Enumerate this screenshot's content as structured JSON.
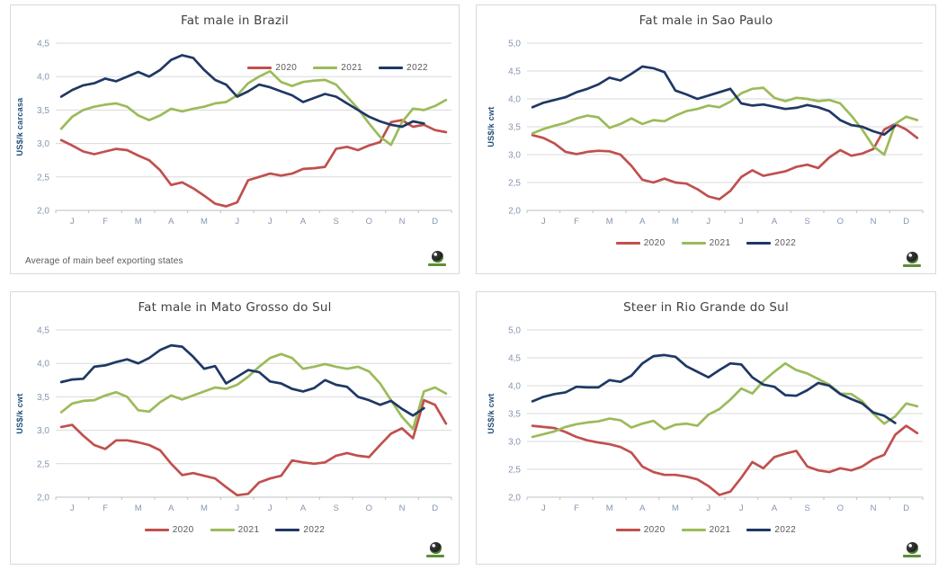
{
  "page": {
    "background": "#ffffff"
  },
  "colors": {
    "2020": "#c0504d",
    "2021": "#9bbb59",
    "2022": "#1f3864",
    "grid": "#d9d9d9",
    "axis_line": "#bfbfbf",
    "tick_label": "#8496b0",
    "axis_title": "#1f4e79",
    "chart_title": "#404040",
    "legend_text": "#595959",
    "panel_border": "#d9d9d9"
  },
  "chart_data": [
    {
      "type": "line",
      "title": "Fat male in Brazil",
      "ylabel": "US$/k carcasa",
      "ylim": [
        2.0,
        4.5
      ],
      "ytick_step": 0.5,
      "yticks": [
        "2,0",
        "2,5",
        "3,0",
        "3,5",
        "4,0",
        "4,5"
      ],
      "x_categories": [
        "J",
        "F",
        "M",
        "A",
        "M",
        "J",
        "J",
        "A",
        "S",
        "O",
        "N",
        "D"
      ],
      "legend_position": "top-right-inset",
      "grid": true,
      "footnote": "Average  of main beef exporting states",
      "series": [
        {
          "name": "2020",
          "values": [
            3.05,
            2.97,
            2.88,
            2.84,
            2.88,
            2.92,
            2.9,
            2.82,
            2.75,
            2.6,
            2.38,
            2.42,
            2.33,
            2.22,
            2.1,
            2.06,
            2.12,
            2.45,
            2.5,
            2.55,
            2.52,
            2.55,
            2.62,
            2.63,
            2.65,
            2.92,
            2.95,
            2.9,
            2.97,
            3.02,
            3.32,
            3.35,
            3.25,
            3.28,
            3.2,
            3.17
          ]
        },
        {
          "name": "2021",
          "values": [
            3.22,
            3.4,
            3.5,
            3.55,
            3.58,
            3.6,
            3.55,
            3.42,
            3.35,
            3.42,
            3.52,
            3.48,
            3.52,
            3.55,
            3.6,
            3.62,
            3.72,
            3.9,
            4.0,
            4.08,
            3.92,
            3.86,
            3.92,
            3.94,
            3.95,
            3.88,
            3.7,
            3.52,
            3.3,
            3.1,
            2.98,
            3.32,
            3.52,
            3.5,
            3.56,
            3.65
          ]
        },
        {
          "name": "2022",
          "values": [
            3.7,
            3.8,
            3.87,
            3.9,
            3.97,
            3.93,
            4.0,
            4.07,
            4.0,
            4.1,
            4.25,
            4.32,
            4.28,
            4.1,
            3.95,
            3.88,
            3.7,
            3.78,
            3.88,
            3.84,
            3.78,
            3.72,
            3.62,
            3.68,
            3.74,
            3.7,
            3.6,
            3.5,
            3.4,
            3.33,
            3.28,
            3.25,
            3.33,
            3.3
          ]
        }
      ]
    },
    {
      "type": "line",
      "title": "Fat male in Sao Paulo",
      "ylabel": "US$/k cwt",
      "ylim": [
        2.0,
        5.0
      ],
      "ytick_step": 0.5,
      "yticks": [
        "2,0",
        "2,5",
        "3,0",
        "3,5",
        "4,0",
        "4,5",
        "5,0"
      ],
      "x_categories": [
        "J",
        "F",
        "M",
        "A",
        "M",
        "J",
        "J",
        "A",
        "S",
        "O",
        "N",
        "D"
      ],
      "legend_position": "bottom",
      "grid": true,
      "series": [
        {
          "name": "2020",
          "values": [
            3.35,
            3.3,
            3.2,
            3.05,
            3.01,
            3.05,
            3.07,
            3.06,
            3.0,
            2.8,
            2.55,
            2.5,
            2.57,
            2.5,
            2.48,
            2.38,
            2.25,
            2.2,
            2.35,
            2.6,
            2.72,
            2.62,
            2.66,
            2.7,
            2.78,
            2.82,
            2.76,
            2.95,
            3.08,
            2.98,
            3.02,
            3.1,
            3.45,
            3.55,
            3.45,
            3.3
          ]
        },
        {
          "name": "2021",
          "values": [
            3.38,
            3.46,
            3.52,
            3.57,
            3.65,
            3.7,
            3.67,
            3.48,
            3.55,
            3.65,
            3.55,
            3.62,
            3.6,
            3.7,
            3.78,
            3.82,
            3.88,
            3.85,
            3.95,
            4.1,
            4.18,
            4.2,
            4.02,
            3.96,
            4.02,
            4.0,
            3.96,
            3.98,
            3.92,
            3.7,
            3.45,
            3.15,
            3.0,
            3.55,
            3.68,
            3.62
          ]
        },
        {
          "name": "2022",
          "values": [
            3.85,
            3.93,
            3.98,
            4.03,
            4.12,
            4.18,
            4.26,
            4.38,
            4.33,
            4.45,
            4.58,
            4.55,
            4.48,
            4.15,
            4.08,
            4.0,
            4.06,
            4.12,
            4.18,
            3.92,
            3.88,
            3.9,
            3.86,
            3.82,
            3.84,
            3.89,
            3.85,
            3.78,
            3.62,
            3.53,
            3.5,
            3.42,
            3.36,
            3.52
          ]
        }
      ]
    },
    {
      "type": "line",
      "title": "Fat male in Mato Grosso do Sul",
      "ylabel": "US$/k cwt",
      "ylim": [
        2.0,
        4.5
      ],
      "ytick_step": 0.5,
      "yticks": [
        "2,0",
        "2,5",
        "3,0",
        "3,5",
        "4,0",
        "4,5"
      ],
      "x_categories": [
        "J",
        "F",
        "M",
        "A",
        "M",
        "J",
        "J",
        "A",
        "S",
        "O",
        "N",
        "D"
      ],
      "legend_position": "bottom",
      "grid": true,
      "series": [
        {
          "name": "2020",
          "values": [
            3.05,
            3.08,
            2.92,
            2.78,
            2.72,
            2.85,
            2.85,
            2.82,
            2.78,
            2.7,
            2.5,
            2.33,
            2.36,
            2.32,
            2.28,
            2.15,
            2.03,
            2.05,
            2.22,
            2.28,
            2.32,
            2.55,
            2.52,
            2.5,
            2.52,
            2.62,
            2.66,
            2.62,
            2.6,
            2.78,
            2.95,
            3.03,
            2.88,
            3.45,
            3.38,
            3.1
          ]
        },
        {
          "name": "2021",
          "values": [
            3.27,
            3.4,
            3.44,
            3.45,
            3.52,
            3.57,
            3.5,
            3.3,
            3.28,
            3.42,
            3.52,
            3.46,
            3.52,
            3.58,
            3.64,
            3.62,
            3.68,
            3.8,
            3.95,
            4.08,
            4.14,
            4.08,
            3.92,
            3.95,
            3.99,
            3.95,
            3.92,
            3.95,
            3.88,
            3.7,
            3.45,
            3.2,
            3.02,
            3.58,
            3.64,
            3.55
          ]
        },
        {
          "name": "2022",
          "values": [
            3.72,
            3.76,
            3.77,
            3.95,
            3.97,
            4.02,
            4.06,
            4.0,
            4.08,
            4.2,
            4.27,
            4.25,
            4.1,
            3.92,
            3.96,
            3.7,
            3.8,
            3.9,
            3.87,
            3.73,
            3.7,
            3.62,
            3.58,
            3.63,
            3.75,
            3.68,
            3.65,
            3.5,
            3.45,
            3.38,
            3.44,
            3.32,
            3.22,
            3.33
          ]
        }
      ]
    },
    {
      "type": "line",
      "title": "Steer  in Rio Grande do Sul",
      "ylabel": "US$/k cwt",
      "ylim": [
        2.0,
        5.0
      ],
      "ytick_step": 0.5,
      "yticks": [
        "2,0",
        "2,5",
        "3,0",
        "3,5",
        "4,0",
        "4,5",
        "5,0"
      ],
      "x_categories": [
        "J",
        "F",
        "M",
        "A",
        "M",
        "J",
        "J",
        "A",
        "S",
        "O",
        "N",
        "D"
      ],
      "legend_position": "bottom",
      "grid": true,
      "series": [
        {
          "name": "2020",
          "values": [
            3.28,
            3.26,
            3.24,
            3.17,
            3.08,
            3.02,
            2.98,
            2.95,
            2.9,
            2.8,
            2.55,
            2.45,
            2.4,
            2.4,
            2.37,
            2.32,
            2.2,
            2.04,
            2.1,
            2.35,
            2.63,
            2.52,
            2.72,
            2.78,
            2.83,
            2.55,
            2.48,
            2.45,
            2.52,
            2.48,
            2.55,
            2.68,
            2.76,
            3.12,
            3.28,
            3.15
          ]
        },
        {
          "name": "2021",
          "values": [
            3.08,
            3.13,
            3.18,
            3.26,
            3.31,
            3.34,
            3.36,
            3.41,
            3.38,
            3.25,
            3.32,
            3.37,
            3.22,
            3.3,
            3.32,
            3.28,
            3.48,
            3.58,
            3.75,
            3.95,
            3.86,
            4.08,
            4.25,
            4.4,
            4.28,
            4.22,
            4.12,
            4.02,
            3.86,
            3.85,
            3.72,
            3.5,
            3.32,
            3.45,
            3.68,
            3.63
          ]
        },
        {
          "name": "2022",
          "values": [
            3.72,
            3.8,
            3.85,
            3.88,
            3.98,
            3.97,
            3.97,
            4.1,
            4.07,
            4.18,
            4.4,
            4.53,
            4.55,
            4.52,
            4.35,
            4.25,
            4.15,
            4.28,
            4.4,
            4.38,
            4.15,
            4.02,
            3.98,
            3.83,
            3.82,
            3.92,
            4.05,
            4.0,
            3.85,
            3.76,
            3.68,
            3.52,
            3.46,
            3.33
          ]
        }
      ]
    }
  ]
}
